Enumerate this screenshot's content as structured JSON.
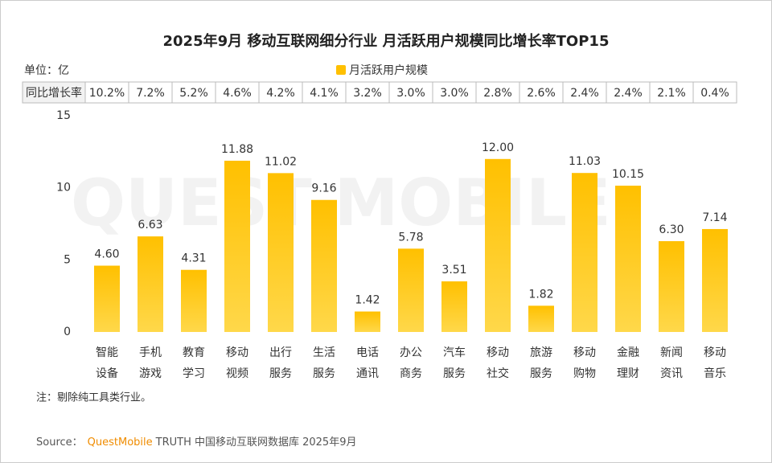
{
  "chart_data": {
    "type": "bar",
    "title": "2025年9月 移动互联网细分行业 月活跃用户规模同比增长率TOP15",
    "unit": "单位：亿",
    "watermark": "QUEST MOBILE",
    "categories": [
      [
        "智能",
        "设备"
      ],
      [
        "手机",
        "游戏"
      ],
      [
        "教育",
        "学习"
      ],
      [
        "移动",
        "视频"
      ],
      [
        "出行",
        "服务"
      ],
      [
        "生活",
        "服务"
      ],
      [
        "电话",
        "通讯"
      ],
      [
        "办公",
        "商务"
      ],
      [
        "汽车",
        "服务"
      ],
      [
        "移动",
        "社交"
      ],
      [
        "旅游",
        "服务"
      ],
      [
        "移动",
        "购物"
      ],
      [
        "金融",
        "理财"
      ],
      [
        "新闻",
        "资讯"
      ],
      [
        "移动",
        "音乐"
      ]
    ],
    "series": [
      {
        "name": "月活跃用户规模",
        "color": "#ffc000",
        "values": [
          4.6,
          6.63,
          4.31,
          11.88,
          11.02,
          9.16,
          1.42,
          5.78,
          3.51,
          12.0,
          1.82,
          11.03,
          10.15,
          6.3,
          7.14
        ],
        "value_labels": [
          "4.60",
          "6.63",
          "4.31",
          "11.88",
          "11.02",
          "9.16",
          "1.42",
          "5.78",
          "3.51",
          "12.00",
          "1.82",
          "11.03",
          "10.15",
          "6.30",
          "7.14"
        ]
      }
    ],
    "growth_row": {
      "header": "同比增长率",
      "cells": [
        "10.2%",
        "7.2%",
        "5.2%",
        "4.6%",
        "4.2%",
        "4.1%",
        "3.2%",
        "3.0%",
        "3.0%",
        "2.8%",
        "2.6%",
        "2.4%",
        "2.4%",
        "2.1%",
        "0.4%"
      ]
    },
    "ylim": [
      0,
      15
    ],
    "yticks": [
      0,
      5,
      10,
      15
    ],
    "grid": false,
    "note": "注：剔除纯工具类行业。",
    "source": {
      "label": "Source：",
      "brand": "QuestMobile",
      "text": "TRUTH 中国移动互联网数据库 2025年9月"
    }
  }
}
